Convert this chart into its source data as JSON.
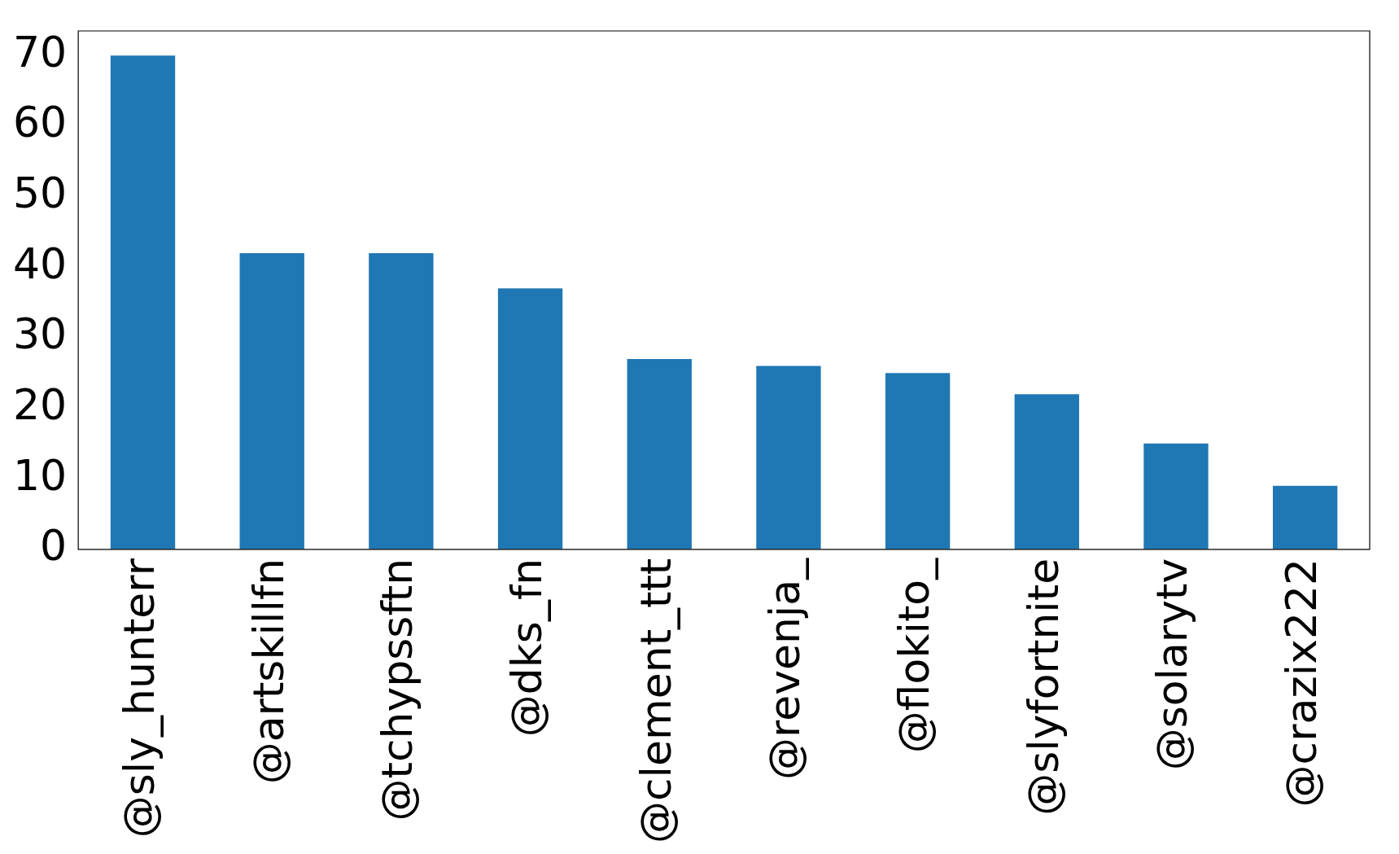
{
  "chart_data": {
    "type": "bar",
    "categories": [
      "@sly_hunterr",
      "@artskillfn",
      "@tchypssftn",
      "@dks_fn",
      "@clement_ttt",
      "@revenja_",
      "@flokito_",
      "@slyfortnite",
      "@solarytv",
      "@crazix222"
    ],
    "values": [
      70,
      42,
      42,
      37,
      27,
      26,
      25,
      22,
      15,
      9
    ],
    "color": "#1f77b4",
    "ylim": [
      0,
      73.5
    ],
    "yticks": [
      0,
      10,
      20,
      30,
      40,
      50,
      60,
      70
    ],
    "grid": false,
    "legend": false
  }
}
